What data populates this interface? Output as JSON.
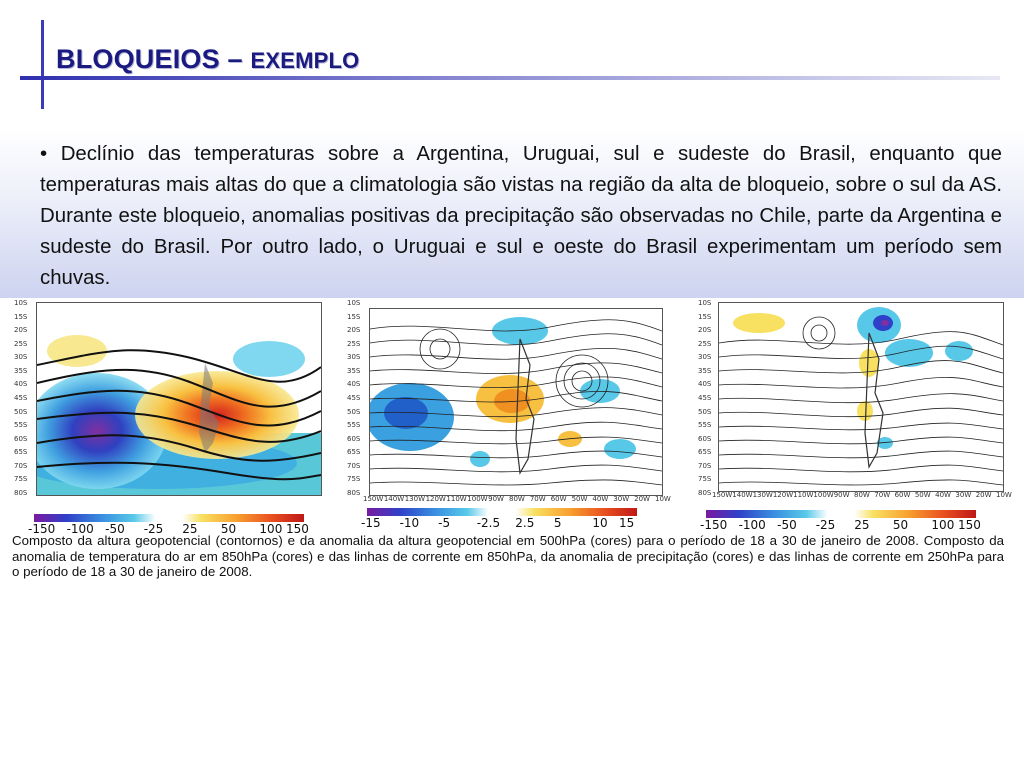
{
  "title": {
    "main": "BLOQUEIOS",
    "dash": " – ",
    "sub": "EXEMPLO"
  },
  "bullet": "• Declínio das temperaturas sobre a Argentina, Uruguai, sul e sudeste do Brasil, enquanto que temperaturas mais altas do que a climatologia são vistas na região da alta de bloqueio, sobre o sul da AS. Durante este bloqueio, anomalias positivas da precipitação são observadas no Chile, parte da Argentina e sudeste do Brasil. Por outro lado, o Uruguai e sul e oeste do Brasil experimentam um período sem chuvas.",
  "maps": [
    {
      "lat_labels": [
        "10S",
        "15S",
        "20S",
        "25S",
        "30S",
        "35S",
        "40S",
        "45S",
        "50S",
        "55S",
        "60S",
        "65S",
        "70S",
        "75S",
        "80S"
      ],
      "colorbar": [
        "-150",
        "-100",
        "-50",
        "-25",
        "25",
        "50",
        "100",
        "150"
      ]
    },
    {
      "lat_labels": [
        "10S",
        "15S",
        "20S",
        "25S",
        "30S",
        "35S",
        "40S",
        "45S",
        "50S",
        "55S",
        "60S",
        "65S",
        "70S",
        "75S",
        "80S"
      ],
      "lon_labels": [
        "150W",
        "140W",
        "130W",
        "120W",
        "110W",
        "100W",
        "90W",
        "80W",
        "70W",
        "60W",
        "50W",
        "40W",
        "30W",
        "20W",
        "10W"
      ],
      "colorbar": [
        "-15",
        "-10",
        "-5",
        "-2.5",
        "2.5",
        "5",
        "10",
        "15"
      ]
    },
    {
      "lat_labels": [
        "10S",
        "15S",
        "20S",
        "25S",
        "30S",
        "35S",
        "40S",
        "45S",
        "50S",
        "55S",
        "60S",
        "65S",
        "70S",
        "75S",
        "80S"
      ],
      "lon_labels": [
        "150W",
        "140W",
        "130W",
        "120W",
        "110W",
        "100W",
        "90W",
        "80W",
        "70W",
        "60W",
        "50W",
        "40W",
        "30W",
        "20W",
        "10W"
      ],
      "colorbar": [
        "-150",
        "-100",
        "-50",
        "-25",
        "25",
        "50",
        "100",
        "150"
      ]
    }
  ],
  "caption": "Composto da altura geopotencial (contornos) e da anomalia da altura geopotencial em 500hPa (cores) para o período de 18 a 30 de janeiro de 2008. Composto da anomalia de temperatura do ar em 850hPa (cores) e das linhas de corrente em 850hPa, da anomalia de precipitação (cores) e das linhas de corrente em 250hPa para o período de 18 a 30 de janeiro de 2008."
}
